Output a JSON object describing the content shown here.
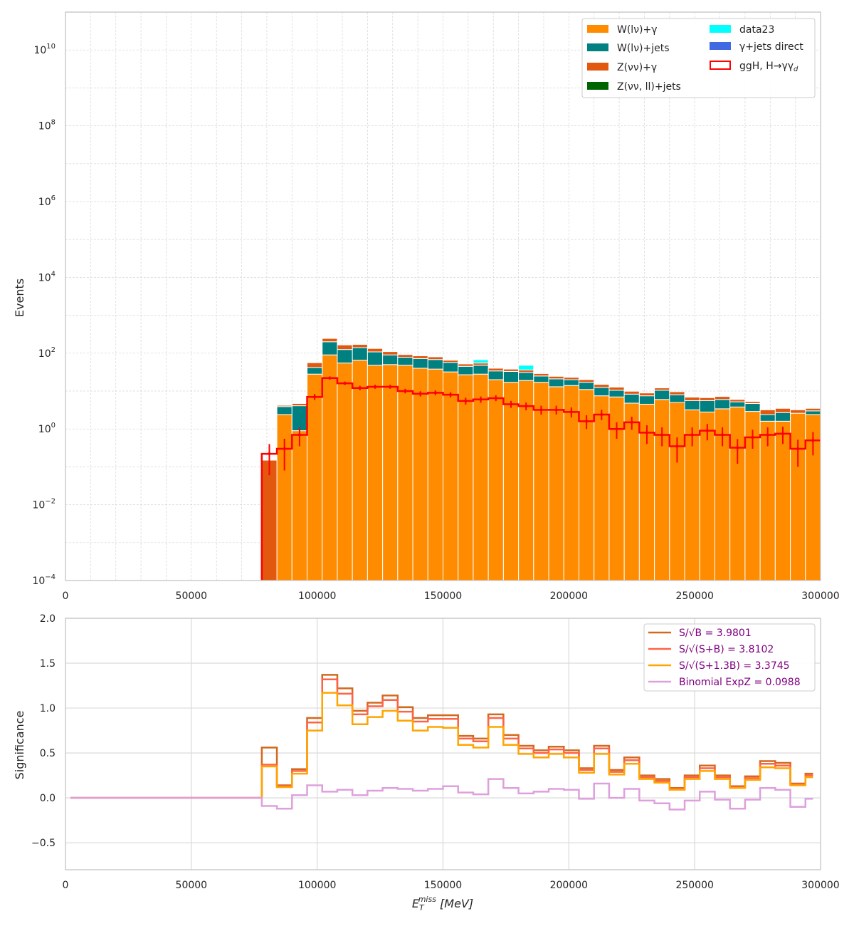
{
  "chart_data": [
    {
      "type": "bar",
      "stacked": true,
      "log_y": true,
      "ylabel": "Events",
      "xlabel": "",
      "xlim": [
        0,
        300000
      ],
      "ylim": [
        0.0001,
        100000000000
      ],
      "grid": true,
      "legend_position": "top-right",
      "x_ticks": [
        "0",
        "50000",
        "100000",
        "150000",
        "200000",
        "250000",
        "300000"
      ],
      "y_ticks": [
        {
          "base": "10",
          "exp": "10"
        },
        {
          "base": "10",
          "exp": "8"
        },
        {
          "base": "10",
          "exp": "6"
        },
        {
          "base": "10",
          "exp": "4"
        },
        {
          "base": "10",
          "exp": "2"
        },
        {
          "base": "10",
          "exp": "0"
        },
        {
          "base": "10",
          "exp": "−2"
        },
        {
          "base": "10",
          "exp": "−4"
        }
      ],
      "bin_edges": [
        78000,
        84000,
        90000,
        96000,
        102000,
        108000,
        114000,
        120000,
        126000,
        132000,
        138000,
        144000,
        150000,
        156000,
        162000,
        168000,
        174000,
        180000,
        186000,
        192000,
        198000,
        204000,
        210000,
        216000,
        222000,
        228000,
        234000,
        240000,
        246000,
        252000,
        258000,
        264000,
        270000,
        276000,
        282000,
        288000,
        294000,
        300000
      ],
      "series": [
        {
          "name": "W(lν)+γ",
          "color": "#ff8c00",
          "values": [
            0,
            2.4,
            0.9,
            28,
            90,
            55,
            65,
            48,
            50,
            48,
            40,
            38,
            32,
            27,
            28,
            20,
            17,
            19,
            17,
            13,
            14,
            11,
            7.5,
            7,
            4.8,
            4.5,
            6,
            5,
            3.2,
            2.8,
            3.4,
            3.8,
            2.9,
            1.6,
            1.6,
            2.6,
            2.4
          ]
        },
        {
          "name": "W(lν)+jets",
          "color": "#008080",
          "values": [
            0,
            1.5,
            3.2,
            14,
            110,
            70,
            75,
            60,
            40,
            30,
            32,
            30,
            25,
            18,
            20,
            14,
            16,
            12,
            8,
            8,
            6,
            6,
            5,
            3.5,
            3.5,
            3,
            4.5,
            3,
            2.4,
            2.8,
            2.6,
            1.4,
            1.8,
            0.8,
            1.1,
            0,
            0.6
          ]
        },
        {
          "name": "Z(νν)+γ",
          "color": "#e2580f",
          "values": [
            0.15,
            0.3,
            0.6,
            14,
            45,
            40,
            30,
            25,
            20,
            14,
            13,
            12,
            8,
            7,
            7,
            6,
            5,
            5,
            4,
            3.5,
            3,
            3,
            2.5,
            2.2,
            1.6,
            1.4,
            1.6,
            1.6,
            1.3,
            1.1,
            1.2,
            0.8,
            0.6,
            0.8,
            0.8,
            0.6,
            0.5
          ]
        },
        {
          "name": "Z(νν, ll)+jets",
          "color": "#006400",
          "values": [
            0,
            0,
            0,
            0,
            0,
            0,
            0,
            0,
            0,
            0,
            0,
            0,
            0,
            0,
            0,
            0,
            0,
            0,
            0,
            0,
            0,
            0,
            0,
            0,
            0,
            0,
            0,
            0,
            0,
            0,
            0,
            0,
            0,
            0,
            0,
            0,
            0
          ]
        },
        {
          "name": "data23",
          "color": "#00ffff",
          "values": [
            0,
            0,
            0,
            0,
            0,
            0,
            0,
            0,
            0,
            0,
            0,
            0,
            0,
            0,
            12,
            0,
            0,
            12,
            0,
            0,
            0,
            0,
            0,
            0,
            0,
            0,
            0,
            0,
            0,
            0,
            0,
            0,
            0,
            0,
            0,
            0,
            0
          ]
        },
        {
          "name": "γ+jets direct",
          "color": "#4169e1",
          "values": [
            0,
            0,
            0,
            0,
            0,
            0,
            0,
            0,
            0,
            0,
            0,
            0,
            0,
            0,
            0,
            0,
            0,
            0,
            0,
            0,
            0,
            0,
            0,
            0,
            0,
            0,
            0,
            0,
            0,
            0,
            0,
            0,
            0,
            0,
            0,
            0,
            0
          ]
        }
      ],
      "signal": {
        "name": "ggH, H→γγd",
        "color": "#ff0000",
        "values": [
          0.22,
          0.3,
          0.7,
          7,
          22,
          16,
          12,
          13,
          13,
          10,
          8.5,
          9,
          8,
          5.5,
          6,
          6.5,
          4.5,
          4,
          3.2,
          3.2,
          2.8,
          1.6,
          2.4,
          1,
          1.5,
          0.8,
          0.7,
          0.35,
          0.7,
          0.9,
          0.7,
          0.32,
          0.6,
          0.7,
          0.75,
          0.3,
          0.5
        ],
        "err_low": [
          0.16,
          0.22,
          0.35,
          1.2,
          2,
          1.5,
          1.5,
          1.5,
          1.5,
          1.3,
          1.3,
          1.2,
          1.2,
          1.1,
          1.1,
          1.1,
          0.9,
          0.9,
          0.8,
          0.8,
          0.8,
          0.6,
          0.7,
          0.45,
          0.55,
          0.4,
          0.35,
          0.22,
          0.35,
          0.4,
          0.35,
          0.2,
          0.3,
          0.35,
          0.35,
          0.2,
          0.3
        ],
        "err_high": [
          0.18,
          0.25,
          0.4,
          1.4,
          2.4,
          1.8,
          1.8,
          1.7,
          1.7,
          1.5,
          1.4,
          1.4,
          1.3,
          1.2,
          1.2,
          1.2,
          1.0,
          1.0,
          0.9,
          0.9,
          0.9,
          0.7,
          0.8,
          0.5,
          0.6,
          0.45,
          0.4,
          0.25,
          0.4,
          0.45,
          0.4,
          0.22,
          0.35,
          0.4,
          0.4,
          0.22,
          0.33
        ]
      },
      "legend": [
        {
          "label": "W(lν)+γ",
          "color": "#ff8c00",
          "style": "fill"
        },
        {
          "label": "W(lν)+jets",
          "color": "#008080",
          "style": "fill"
        },
        {
          "label": "Z(νν)+γ",
          "color": "#e2580f",
          "style": "fill"
        },
        {
          "label": "Z(νν, ll)+jets",
          "color": "#006400",
          "style": "fill"
        },
        {
          "label": "data23",
          "color": "#00ffff",
          "style": "fill"
        },
        {
          "label": "γ+jets direct",
          "color": "#4169e1",
          "style": "fill"
        },
        {
          "label": "ggH, H→γγ",
          "sub": "d",
          "color": "#ff0000",
          "style": "outline"
        }
      ]
    },
    {
      "type": "line",
      "step": true,
      "ylabel": "Significance",
      "xlabel": "E_T^miss [MeV]",
      "xlabel_main": "E",
      "xlabel_sub": "T",
      "xlabel_sup": "miss",
      "xlabel_unit": " [MeV]",
      "xlim": [
        0,
        300000
      ],
      "ylim": [
        -0.8,
        2.0
      ],
      "grid": true,
      "legend_position": "top-right",
      "x_ticks": [
        "0",
        "50000",
        "100000",
        "150000",
        "200000",
        "250000",
        "300000"
      ],
      "y_ticks": [
        "2.0",
        "1.5",
        "1.0",
        "0.5",
        "0.0",
        "−0.5"
      ],
      "zero_region": [
        2000,
        78000
      ],
      "bin_edges": [
        78000,
        84000,
        90000,
        96000,
        102000,
        108000,
        114000,
        120000,
        126000,
        132000,
        138000,
        144000,
        150000,
        156000,
        162000,
        168000,
        174000,
        180000,
        186000,
        192000,
        198000,
        204000,
        210000,
        216000,
        222000,
        228000,
        234000,
        240000,
        246000,
        252000,
        258000,
        264000,
        270000,
        276000,
        282000,
        288000,
        294000,
        297000
      ],
      "series": [
        {
          "name": "S/√B = 3.9801",
          "color": "#d2691e",
          "values": [
            0.56,
            0.14,
            0.32,
            0.89,
            1.37,
            1.22,
            0.97,
            1.06,
            1.14,
            1.01,
            0.89,
            0.92,
            0.92,
            0.69,
            0.66,
            0.93,
            0.7,
            0.58,
            0.53,
            0.57,
            0.53,
            0.33,
            0.58,
            0.31,
            0.45,
            0.25,
            0.21,
            0.11,
            0.25,
            0.36,
            0.25,
            0.13,
            0.24,
            0.41,
            0.39,
            0.16,
            0.27
          ]
        },
        {
          "name": "S/√(S+B) = 3.8102",
          "color": "#ff6347",
          "values": [
            0.37,
            0.13,
            0.3,
            0.84,
            1.32,
            1.16,
            0.93,
            1.02,
            1.09,
            0.96,
            0.85,
            0.88,
            0.88,
            0.66,
            0.63,
            0.89,
            0.66,
            0.55,
            0.5,
            0.54,
            0.5,
            0.31,
            0.55,
            0.29,
            0.42,
            0.23,
            0.19,
            0.1,
            0.23,
            0.33,
            0.23,
            0.12,
            0.22,
            0.38,
            0.36,
            0.15,
            0.25
          ]
        },
        {
          "name": "S/√(S+1.3B) = 3.3745",
          "color": "#ffa500",
          "values": [
            0.35,
            0.12,
            0.27,
            0.75,
            1.17,
            1.03,
            0.82,
            0.9,
            0.97,
            0.86,
            0.75,
            0.79,
            0.78,
            0.59,
            0.56,
            0.79,
            0.59,
            0.49,
            0.45,
            0.49,
            0.45,
            0.28,
            0.49,
            0.26,
            0.38,
            0.21,
            0.17,
            0.09,
            0.21,
            0.3,
            0.21,
            0.11,
            0.2,
            0.34,
            0.33,
            0.14,
            0.23
          ]
        },
        {
          "name": "Binomial ExpZ = 0.0988",
          "color": "#dda0dd",
          "values": [
            -0.09,
            -0.12,
            0.03,
            0.14,
            0.07,
            0.09,
            0.03,
            0.08,
            0.11,
            0.1,
            0.08,
            0.1,
            0.13,
            0.06,
            0.04,
            0.21,
            0.11,
            0.05,
            0.07,
            0.1,
            0.09,
            -0.01,
            0.16,
            0.0,
            0.1,
            -0.03,
            -0.06,
            -0.13,
            -0.03,
            0.07,
            -0.02,
            -0.12,
            -0.02,
            0.11,
            0.09,
            -0.1,
            -0.01
          ]
        }
      ]
    }
  ]
}
